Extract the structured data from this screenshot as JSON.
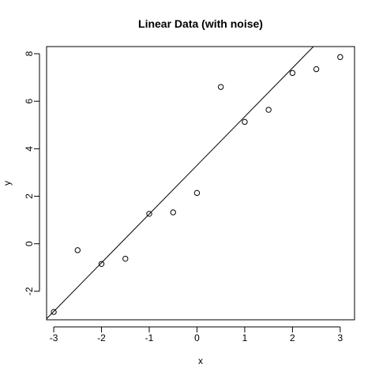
{
  "chart_data": {
    "type": "scatter",
    "title": "Linear Data (with noise)",
    "xlabel": "x",
    "ylabel": "y",
    "xlim": [
      -3.15,
      3.3
    ],
    "ylim": [
      -3.2,
      8.3
    ],
    "x_ticks": [
      -3,
      -2,
      -1,
      0,
      1,
      2,
      3
    ],
    "y_ticks": [
      -2,
      0,
      2,
      4,
      6,
      8
    ],
    "x_tick_labels": [
      "-3",
      "-2",
      "-1",
      "0",
      "1",
      "2",
      "3"
    ],
    "y_tick_labels": [
      "-2",
      "0",
      "2",
      "4",
      "6",
      "8"
    ],
    "grid": false,
    "legend": "none",
    "series": [
      {
        "type": "scatter",
        "points": [
          {
            "x": -3.0,
            "y": -2.87
          },
          {
            "x": -2.5,
            "y": -0.27
          },
          {
            "x": -2.0,
            "y": -0.85
          },
          {
            "x": -1.5,
            "y": -0.63
          },
          {
            "x": -1.0,
            "y": 1.26
          },
          {
            "x": -0.5,
            "y": 1.32
          },
          {
            "x": 0.0,
            "y": 2.14
          },
          {
            "x": 0.5,
            "y": 6.6
          },
          {
            "x": 1.0,
            "y": 5.13
          },
          {
            "x": 1.5,
            "y": 5.64
          },
          {
            "x": 2.0,
            "y": 7.19
          },
          {
            "x": 2.5,
            "y": 7.35
          },
          {
            "x": 3.0,
            "y": 7.86
          }
        ]
      },
      {
        "type": "line",
        "intercept": 3.3,
        "slope": 2.05
      }
    ]
  }
}
